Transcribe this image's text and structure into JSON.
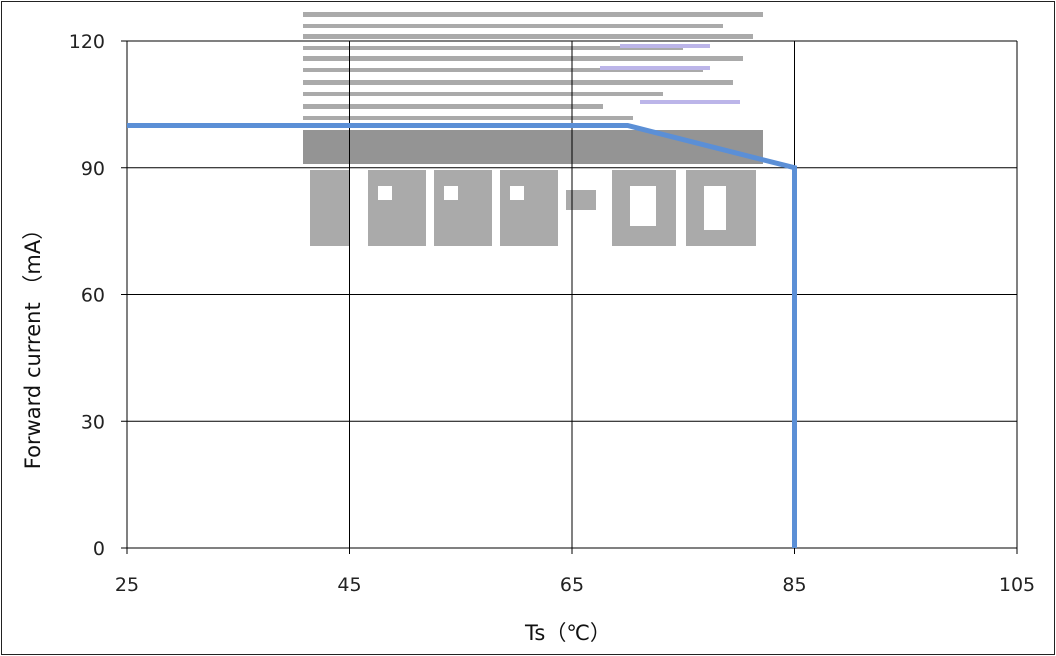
{
  "chart_data": {
    "type": "line",
    "title": "",
    "xlabel": "Ts（℃）",
    "ylabel": "Forward current （mA）",
    "xlim": [
      25,
      105
    ],
    "ylim": [
      0,
      120
    ],
    "x_ticks": [
      "25",
      "45",
      "65",
      "85",
      "105"
    ],
    "y_ticks": [
      "0",
      "30",
      "60",
      "90",
      "120"
    ],
    "grid": true,
    "legend": "none",
    "series": [
      {
        "x": [
          25,
          70,
          85,
          85
        ],
        "y": [
          100,
          100,
          90,
          0
        ],
        "color": "#5b8fd6"
      }
    ]
  },
  "colors": {
    "line": "#5b8fd6",
    "grid": "#000000",
    "watermark": "#a6a6a6"
  }
}
